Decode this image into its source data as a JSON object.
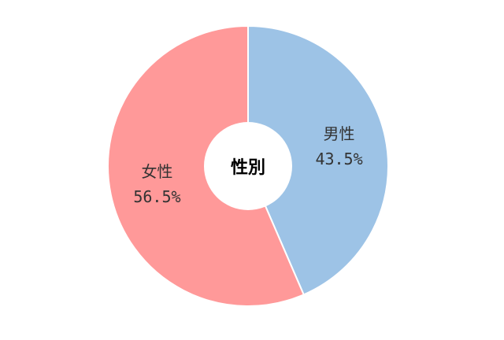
{
  "chart_data": {
    "type": "pie",
    "style": "donut",
    "center_label": "性別",
    "slices": [
      {
        "label": "男性",
        "value": 43.5,
        "value_label": "43.5%",
        "color": "#9DC3E6"
      },
      {
        "label": "女性",
        "value": 56.5,
        "value_label": "56.5%",
        "color": "#FF9999"
      }
    ],
    "start": "top",
    "direction": "clockwise",
    "legend": "none"
  }
}
